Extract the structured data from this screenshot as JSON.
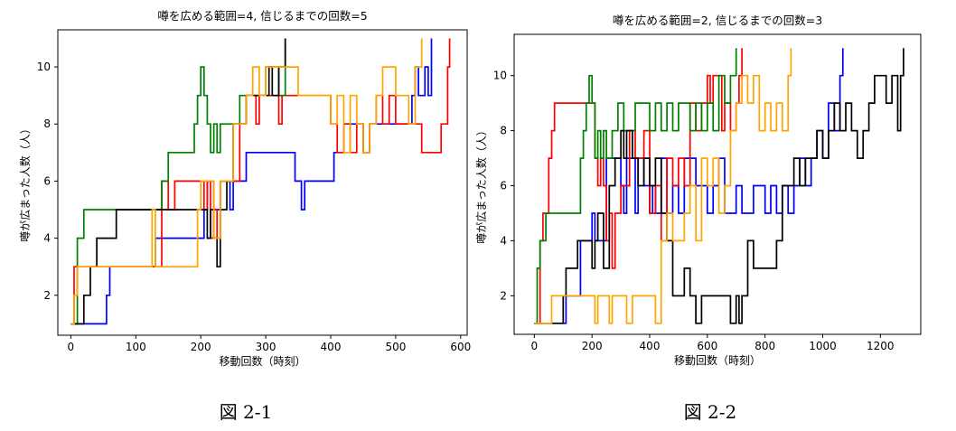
{
  "captions": [
    "図 2-1",
    "図 2-2"
  ],
  "colors": [
    "#0000ff",
    "#ff0000",
    "#008000",
    "#000000",
    "#ffa500"
  ],
  "chart_data": [
    {
      "type": "line",
      "title": "噂を広める範囲=4, 信じるまでの回数=5",
      "xlabel": "移動回数（時刻）",
      "ylabel": "噂が広まった人数（人）",
      "xlim": [
        -20,
        610
      ],
      "ylim": [
        0.6,
        11.3
      ],
      "xticks": [
        0,
        100,
        200,
        300,
        400,
        500,
        600
      ],
      "yticks": [
        2,
        4,
        6,
        8,
        10
      ],
      "grid": false,
      "series": [
        {
          "color": "#0000ff",
          "x": [
            0,
            10,
            50,
            55,
            60,
            125,
            130,
            200,
            205,
            210,
            220,
            230,
            240,
            245,
            250,
            260,
            270,
            280,
            300,
            330,
            345,
            355,
            360,
            400,
            405,
            410,
            420,
            440,
            450,
            460,
            520,
            525,
            530,
            535,
            545,
            550,
            555
          ],
          "y": [
            1,
            1,
            1,
            2,
            3,
            3,
            4,
            4,
            5,
            6,
            5,
            6,
            6,
            5,
            6,
            6,
            7,
            7,
            7,
            7,
            6,
            5,
            6,
            6,
            7,
            7,
            8,
            8,
            7,
            8,
            8,
            9,
            10,
            9,
            10,
            9,
            11
          ]
        },
        {
          "color": "#ff0000",
          "x": [
            0,
            5,
            10,
            130,
            140,
            150,
            160,
            200,
            205,
            210,
            215,
            220,
            225,
            230,
            240,
            260,
            270,
            285,
            290,
            310,
            320,
            325,
            330,
            390,
            400,
            410,
            420,
            430,
            440,
            450,
            460,
            470,
            480,
            490,
            500,
            520,
            540,
            560,
            570,
            580,
            583
          ],
          "y": [
            1,
            3,
            3,
            3,
            6,
            5,
            6,
            6,
            5,
            6,
            4,
            5,
            4,
            6,
            6,
            8,
            9,
            8,
            9,
            9,
            8,
            9,
            9,
            9,
            8,
            7,
            8,
            7,
            8,
            7,
            8,
            9,
            8,
            9,
            8,
            8,
            7,
            7,
            8,
            10,
            11
          ]
        },
        {
          "color": "#008000",
          "x": [
            0,
            10,
            20,
            50,
            130,
            140,
            150,
            180,
            190,
            195,
            200,
            205,
            210,
            215,
            220,
            225,
            230,
            240,
            260,
            280,
            300,
            320,
            330
          ],
          "y": [
            1,
            4,
            5,
            5,
            5,
            6,
            7,
            7,
            8,
            9,
            10,
            9,
            8,
            7,
            8,
            7,
            8,
            8,
            9,
            9,
            10,
            9,
            11
          ]
        },
        {
          "color": "#000000",
          "x": [
            0,
            15,
            20,
            30,
            40,
            60,
            70,
            80,
            120,
            200,
            210,
            215,
            220,
            225,
            230,
            240,
            250,
            260,
            270,
            280,
            300,
            305,
            310,
            320,
            330
          ],
          "y": [
            1,
            1,
            2,
            3,
            4,
            4,
            5,
            5,
            5,
            5,
            4,
            5,
            4,
            3,
            5,
            6,
            8,
            8,
            9,
            9,
            9,
            10,
            9,
            10,
            11
          ]
        },
        {
          "color": "#ffa500",
          "x": [
            0,
            5,
            10,
            120,
            125,
            130,
            190,
            195,
            200,
            220,
            230,
            250,
            260,
            270,
            280,
            290,
            300,
            340,
            350,
            380,
            400,
            410,
            420,
            430,
            440,
            450,
            460,
            470,
            480,
            500,
            520,
            530,
            540
          ],
          "y": [
            1,
            2,
            3,
            3,
            5,
            3,
            3,
            5,
            6,
            4,
            6,
            8,
            8,
            9,
            10,
            9,
            10,
            10,
            9,
            9,
            8,
            9,
            7,
            9,
            8,
            7,
            8,
            9,
            10,
            9,
            8,
            10,
            11
          ]
        }
      ]
    },
    {
      "type": "line",
      "title": "噂を広める範囲=2, 信じるまでの回数=3",
      "xlabel": "移動回数（時刻）",
      "ylabel": "噂が広まった人数（人）",
      "xlim": [
        -70,
        1340
      ],
      "ylim": [
        0.6,
        11.5
      ],
      "xticks": [
        0,
        200,
        400,
        600,
        800,
        1000,
        1200
      ],
      "yticks": [
        2,
        4,
        6,
        8,
        10
      ],
      "grid": false,
      "series": [
        {
          "color": "#0000ff",
          "x": [
            0,
            100,
            110,
            150,
            160,
            200,
            210,
            250,
            300,
            310,
            320,
            350,
            360,
            380,
            400,
            410,
            420,
            440,
            460,
            480,
            500,
            520,
            560,
            600,
            620,
            640,
            660,
            700,
            720,
            760,
            800,
            820,
            840,
            860,
            880,
            900,
            920,
            940,
            960,
            980,
            1000,
            1020,
            1040,
            1060,
            1070
          ],
          "y": [
            1,
            1,
            2,
            2,
            4,
            5,
            4,
            7,
            6,
            5,
            7,
            5,
            7,
            6,
            5,
            6,
            5,
            7,
            5,
            6,
            5,
            7,
            6,
            5,
            6,
            7,
            5,
            6,
            5,
            6,
            5,
            6,
            5,
            6,
            5,
            6,
            7,
            6,
            7,
            8,
            7,
            9,
            8,
            10,
            11
          ]
        },
        {
          "color": "#ff0000",
          "x": [
            0,
            20,
            30,
            40,
            50,
            60,
            70,
            200,
            210,
            220,
            230,
            240,
            250,
            260,
            270,
            280,
            300,
            330,
            350,
            380,
            400,
            420,
            440,
            460,
            480,
            500,
            520,
            540,
            560,
            580,
            600,
            610,
            620,
            650,
            660,
            680,
            700,
            710,
            720
          ],
          "y": [
            1,
            4,
            5,
            5,
            7,
            8,
            9,
            9,
            7,
            6,
            7,
            6,
            4,
            5,
            3,
            5,
            6,
            8,
            7,
            8,
            5,
            6,
            4,
            7,
            6,
            7,
            6,
            9,
            8,
            9,
            10,
            9,
            10,
            8,
            9,
            8,
            9,
            10,
            11
          ]
        },
        {
          "color": "#008000",
          "x": [
            0,
            10,
            20,
            40,
            150,
            160,
            170,
            180,
            190,
            200,
            210,
            220,
            230,
            240,
            250,
            270,
            290,
            310,
            350,
            380,
            400,
            420,
            440,
            460,
            480,
            500,
            520,
            540,
            560,
            580,
            600,
            620,
            640,
            660,
            680,
            700
          ],
          "y": [
            1,
            3,
            4,
            5,
            5,
            7,
            8,
            9,
            10,
            9,
            7,
            8,
            7,
            8,
            7,
            8,
            9,
            8,
            9,
            9,
            8,
            9,
            8,
            9,
            8,
            9,
            9,
            8,
            9,
            8,
            9,
            8,
            10,
            9,
            10,
            11
          ]
        },
        {
          "color": "#000000",
          "x": [
            0,
            60,
            100,
            110,
            130,
            150,
            170,
            200,
            210,
            220,
            240,
            260,
            280,
            300,
            310,
            320,
            340,
            360,
            380,
            400,
            420,
            440,
            460,
            480,
            500,
            520,
            540,
            560,
            580,
            600,
            660,
            680,
            700,
            710,
            720,
            740,
            760,
            800,
            840,
            860,
            880,
            900,
            920,
            940,
            960,
            980,
            1000,
            1020,
            1040,
            1060,
            1080,
            1100,
            1120,
            1140,
            1160,
            1180,
            1200,
            1220,
            1240,
            1260,
            1270,
            1280
          ],
          "y": [
            1,
            1,
            2,
            3,
            3,
            4,
            4,
            3,
            4,
            5,
            3,
            6,
            7,
            8,
            7,
            8,
            7,
            6,
            7,
            6,
            7,
            5,
            4,
            2,
            2,
            3,
            2,
            1,
            2,
            2,
            2,
            1,
            2,
            1,
            2,
            4,
            3,
            3,
            4,
            6,
            6,
            7,
            6,
            7,
            7,
            8,
            7,
            8,
            9,
            8,
            9,
            8,
            7,
            8,
            9,
            10,
            10,
            9,
            10,
            8,
            10,
            11
          ]
        },
        {
          "color": "#ffa500",
          "x": [
            0,
            40,
            60,
            200,
            210,
            220,
            250,
            260,
            270,
            300,
            320,
            340,
            400,
            420,
            440,
            460,
            480,
            500,
            520,
            540,
            560,
            580,
            600,
            620,
            640,
            660,
            680,
            700,
            720,
            740,
            760,
            780,
            800,
            820,
            840,
            860,
            880,
            890
          ],
          "y": [
            1,
            1,
            2,
            2,
            1,
            2,
            2,
            1,
            2,
            2,
            1,
            2,
            2,
            1,
            4,
            5,
            4,
            4,
            5,
            6,
            4,
            7,
            6,
            7,
            5,
            6,
            8,
            9,
            10,
            9,
            10,
            8,
            9,
            8,
            9,
            8,
            10,
            11
          ]
        }
      ]
    }
  ]
}
